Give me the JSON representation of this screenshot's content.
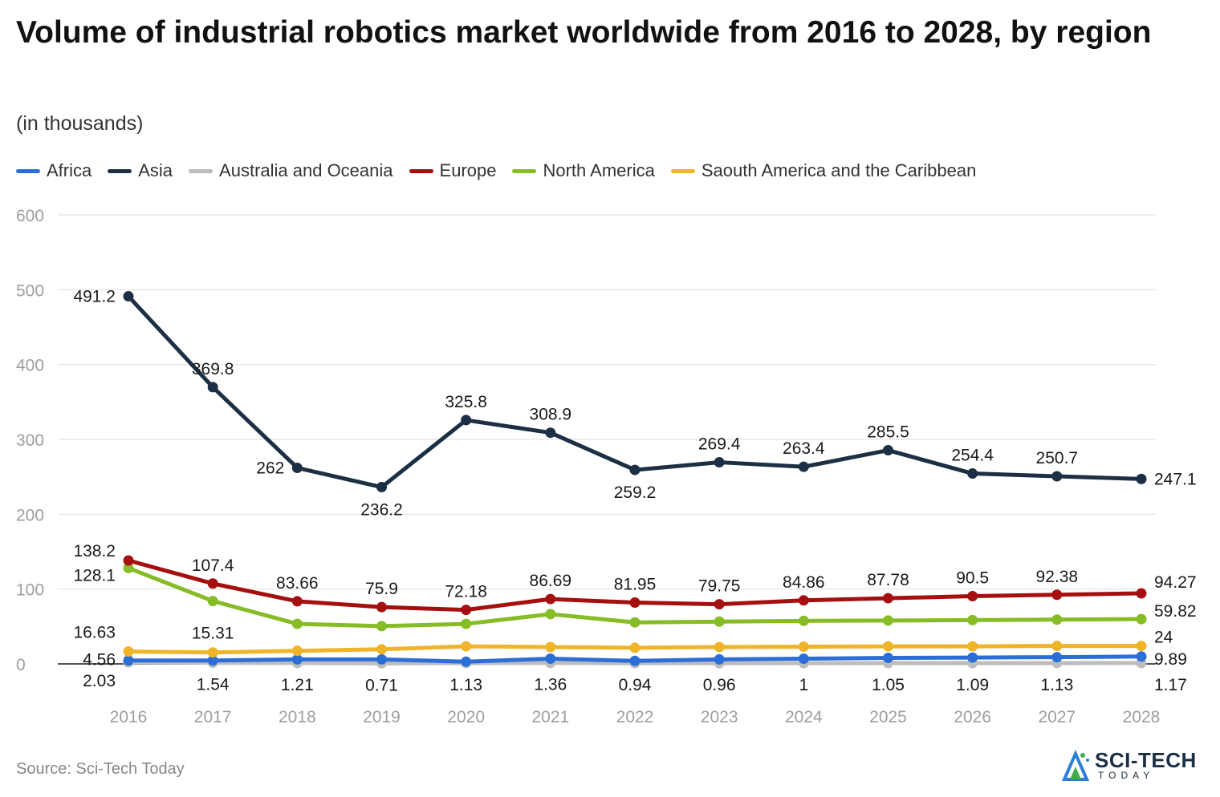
{
  "chart_data": {
    "type": "line",
    "title": "Volume of industrial robotics market worldwide from 2016 to 2028, by region",
    "subtitle": "(in thousands)",
    "x": [
      "2016",
      "2017",
      "2018",
      "2019",
      "2020",
      "2021",
      "2022",
      "2023",
      "2024",
      "2025",
      "2026",
      "2027",
      "2028"
    ],
    "ylim": [
      0,
      600
    ],
    "yticks": [
      "0",
      "100",
      "200",
      "300",
      "400",
      "500",
      "600"
    ],
    "grid": true,
    "legend_position": "top-left",
    "series": [
      {
        "name": "Africa",
        "color": "#2b6fd6",
        "values": [
          4.56,
          4.5,
          6.0,
          6.0,
          3.0,
          7.0,
          4.0,
          6.0,
          7.0,
          8.0,
          8.5,
          9.0,
          9.89
        ],
        "labels": [
          "4.56",
          "",
          "",
          "",
          "",
          "",
          "",
          "",
          "",
          "",
          "",
          "",
          "9.89"
        ]
      },
      {
        "name": "Asia",
        "color": "#1c2f45",
        "values": [
          491.2,
          369.8,
          262,
          236.2,
          325.8,
          308.9,
          259.2,
          269.4,
          263.4,
          285.5,
          254.4,
          250.7,
          247.1
        ],
        "labels": [
          "491.2",
          "369.8",
          "262",
          "236.2",
          "325.8",
          "308.9",
          "259.2",
          "269.4",
          "263.4",
          "285.5",
          "254.4",
          "250.7",
          "247.1"
        ]
      },
      {
        "name": "Australia and Oceania",
        "color": "#bdbdbd",
        "values": [
          2.03,
          1.54,
          1.21,
          0.71,
          1.13,
          1.36,
          0.94,
          0.96,
          1,
          1.05,
          1.09,
          1.13,
          1.17
        ],
        "labels": [
          "2.03",
          "1.54",
          "1.21",
          "0.71",
          "1.13",
          "1.36",
          "0.94",
          "0.96",
          "1",
          "1.05",
          "1.09",
          "1.13",
          "1.17"
        ]
      },
      {
        "name": "Europe",
        "color": "#a50f0f",
        "values": [
          138.2,
          107.4,
          83.66,
          75.9,
          72.18,
          86.69,
          81.95,
          79.75,
          84.86,
          87.78,
          90.5,
          92.38,
          94.27
        ],
        "labels": [
          "138.2",
          "107.4",
          "83.66",
          "75.9",
          "72.18",
          "86.69",
          "81.95",
          "79.75",
          "84.86",
          "87.78",
          "90.5",
          "92.38",
          "94.27"
        ]
      },
      {
        "name": "North America",
        "color": "#86bc25",
        "values": [
          128.1,
          84,
          53.5,
          50.5,
          53.5,
          66.5,
          55.5,
          56.5,
          57.5,
          58,
          58.5,
          59.2,
          59.82
        ],
        "labels": [
          "128.1",
          "",
          "",
          "",
          "",
          "",
          "",
          "",
          "",
          "",
          "",
          "",
          "59.82"
        ]
      },
      {
        "name": "Saouth America and the Caribbean",
        "color": "#f0b429",
        "values": [
          16.63,
          15.31,
          17.5,
          19.5,
          23.5,
          22.5,
          21.5,
          22.5,
          23,
          23.5,
          23.5,
          24,
          24
        ],
        "labels": [
          "16.63",
          "15.31",
          "",
          "",
          "",
          "",
          "",
          "",
          "",
          "",
          "",
          "",
          "24"
        ]
      }
    ],
    "source": "Source: Sci-Tech Today"
  },
  "logo": {
    "main": "SCI-TECH",
    "sub": "TODAY"
  }
}
